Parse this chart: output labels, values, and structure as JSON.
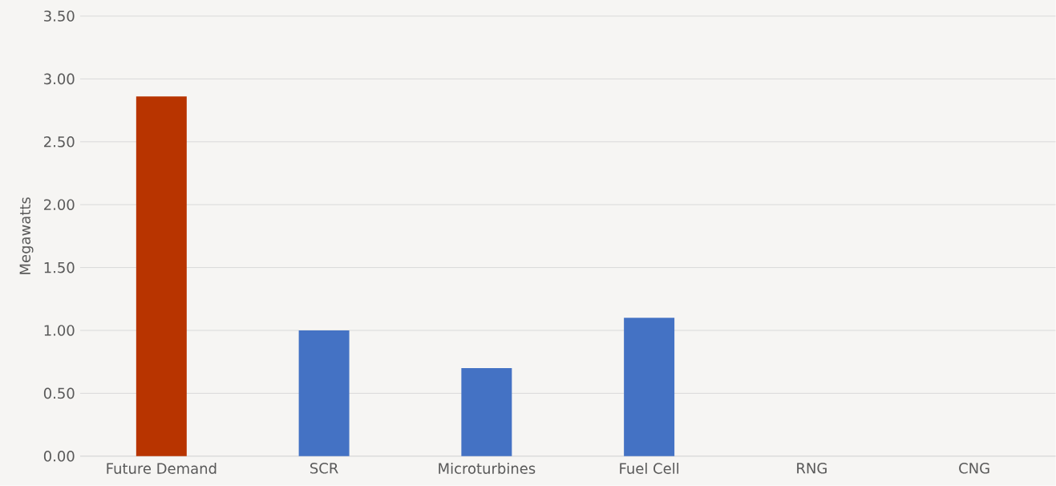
{
  "chart_data": {
    "type": "bar",
    "ylabel": "Megawatts",
    "categories": [
      "Future Demand",
      "SCR",
      "Microturbines",
      "Fuel Cell",
      "RNG",
      "CNG"
    ],
    "values": [
      2.86,
      1.0,
      0.7,
      1.1,
      0,
      0
    ],
    "colors": [
      "#b83400",
      "#4472c4",
      "#4472c4",
      "#4472c4",
      "#4472c4",
      "#4472c4"
    ],
    "ylim": [
      0,
      3.5
    ],
    "yticks": [
      {
        "value": 0,
        "label": "0.00"
      },
      {
        "value": 0.5,
        "label": "0.50"
      },
      {
        "value": 1,
        "label": "1.00"
      },
      {
        "value": 1.5,
        "label": "1.50"
      },
      {
        "value": 2,
        "label": "2.00"
      },
      {
        "value": 2.5,
        "label": "2.50"
      },
      {
        "value": 3,
        "label": "3.00"
      },
      {
        "value": 3.5,
        "label": "3.50"
      }
    ],
    "grid": "y"
  }
}
